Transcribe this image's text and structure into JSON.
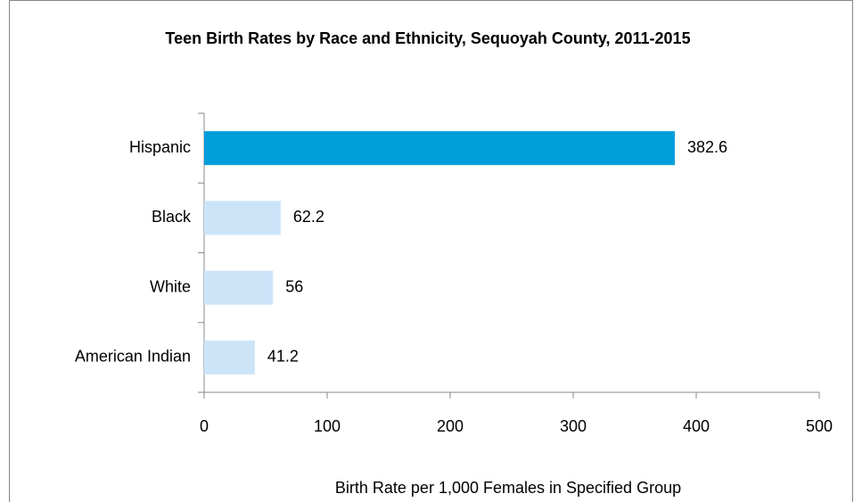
{
  "chart_data": {
    "type": "bar",
    "orientation": "horizontal",
    "title": "Teen Birth Rates by Race and Ethnicity, Sequoyah County, 2011-2015",
    "categories": [
      "Hispanic",
      "Black",
      "White",
      "American Indian"
    ],
    "values": [
      382.6,
      62.2,
      56,
      41.2
    ],
    "colors": [
      "#009ddb",
      "#cce4f8",
      "#cce4f8",
      "#cce4f8"
    ],
    "xlabel": "Birth Rate per 1,000 Females in Specified Group",
    "xlim": [
      0,
      500
    ],
    "xticks": [
      0,
      100,
      200,
      300,
      400,
      500
    ],
    "grid": false
  }
}
